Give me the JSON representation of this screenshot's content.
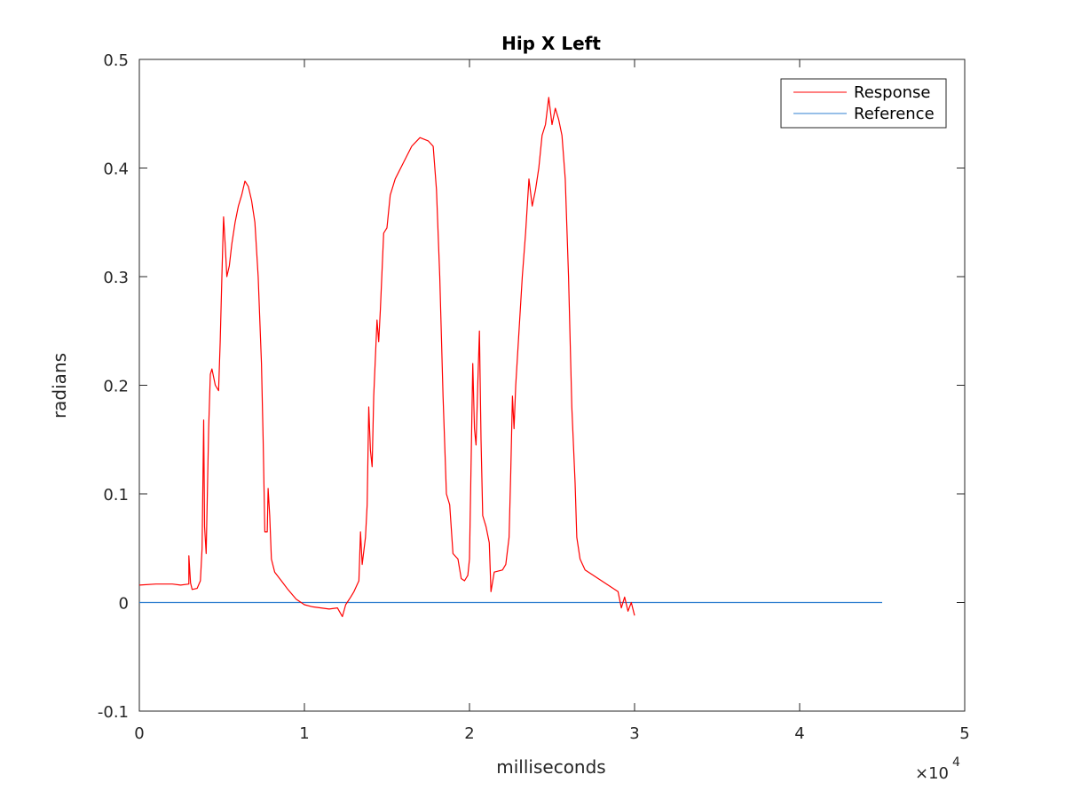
{
  "chart_data": {
    "type": "line",
    "title": "Hip X Left",
    "xlabel": "milliseconds",
    "ylabel": "radians",
    "xlim": [
      0,
      5
    ],
    "ylim": [
      -0.1,
      0.5
    ],
    "x_scale_exponent": "×10",
    "x_scale_power": "4",
    "xticks": [
      "0",
      "1",
      "2",
      "3",
      "4",
      "5"
    ],
    "yticks": [
      "-0.1",
      "0",
      "0.1",
      "0.2",
      "0.3",
      "0.4",
      "0.5"
    ],
    "grid": false,
    "legend_position": "top-right",
    "series": [
      {
        "name": "Response",
        "color": "#ff0000",
        "points": [
          [
            0,
            0.016
          ],
          [
            0.1,
            0.017
          ],
          [
            0.2,
            0.017
          ],
          [
            0.25,
            0.016
          ],
          [
            0.3,
            0.017
          ],
          [
            0.3,
            0.043
          ],
          [
            0.31,
            0.018
          ],
          [
            0.32,
            0.012
          ],
          [
            0.35,
            0.013
          ],
          [
            0.37,
            0.02
          ],
          [
            0.38,
            0.05
          ],
          [
            0.39,
            0.168
          ],
          [
            0.395,
            0.07
          ],
          [
            0.405,
            0.045
          ],
          [
            0.42,
            0.16
          ],
          [
            0.43,
            0.21
          ],
          [
            0.44,
            0.215
          ],
          [
            0.46,
            0.2
          ],
          [
            0.48,
            0.195
          ],
          [
            0.49,
            0.24
          ],
          [
            0.5,
            0.3
          ],
          [
            0.51,
            0.355
          ],
          [
            0.52,
            0.33
          ],
          [
            0.53,
            0.3
          ],
          [
            0.545,
            0.31
          ],
          [
            0.56,
            0.33
          ],
          [
            0.58,
            0.35
          ],
          [
            0.6,
            0.365
          ],
          [
            0.62,
            0.375
          ],
          [
            0.64,
            0.388
          ],
          [
            0.66,
            0.383
          ],
          [
            0.68,
            0.37
          ],
          [
            0.7,
            0.35
          ],
          [
            0.72,
            0.3
          ],
          [
            0.74,
            0.22
          ],
          [
            0.75,
            0.15
          ],
          [
            0.76,
            0.065
          ],
          [
            0.775,
            0.065
          ],
          [
            0.78,
            0.105
          ],
          [
            0.79,
            0.08
          ],
          [
            0.8,
            0.04
          ],
          [
            0.82,
            0.028
          ],
          [
            0.86,
            0.02
          ],
          [
            0.9,
            0.012
          ],
          [
            0.95,
            0.003
          ],
          [
            1.0,
            -0.002
          ],
          [
            1.05,
            -0.004
          ],
          [
            1.1,
            -0.005
          ],
          [
            1.15,
            -0.006
          ],
          [
            1.2,
            -0.005
          ],
          [
            1.23,
            -0.013
          ],
          [
            1.25,
            -0.002
          ],
          [
            1.28,
            0.005
          ],
          [
            1.3,
            0.01
          ],
          [
            1.33,
            0.02
          ],
          [
            1.34,
            0.065
          ],
          [
            1.35,
            0.035
          ],
          [
            1.37,
            0.06
          ],
          [
            1.38,
            0.09
          ],
          [
            1.39,
            0.18
          ],
          [
            1.4,
            0.14
          ],
          [
            1.41,
            0.125
          ],
          [
            1.42,
            0.19
          ],
          [
            1.44,
            0.26
          ],
          [
            1.45,
            0.24
          ],
          [
            1.46,
            0.27
          ],
          [
            1.48,
            0.34
          ],
          [
            1.5,
            0.345
          ],
          [
            1.52,
            0.375
          ],
          [
            1.55,
            0.39
          ],
          [
            1.6,
            0.405
          ],
          [
            1.65,
            0.42
          ],
          [
            1.7,
            0.428
          ],
          [
            1.75,
            0.425
          ],
          [
            1.78,
            0.42
          ],
          [
            1.8,
            0.38
          ],
          [
            1.82,
            0.3
          ],
          [
            1.84,
            0.19
          ],
          [
            1.86,
            0.1
          ],
          [
            1.88,
            0.09
          ],
          [
            1.9,
            0.045
          ],
          [
            1.93,
            0.04
          ],
          [
            1.95,
            0.022
          ],
          [
            1.97,
            0.02
          ],
          [
            1.99,
            0.025
          ],
          [
            2.0,
            0.04
          ],
          [
            2.02,
            0.22
          ],
          [
            2.03,
            0.16
          ],
          [
            2.04,
            0.145
          ],
          [
            2.05,
            0.2
          ],
          [
            2.06,
            0.25
          ],
          [
            2.07,
            0.15
          ],
          [
            2.08,
            0.08
          ],
          [
            2.1,
            0.07
          ],
          [
            2.12,
            0.055
          ],
          [
            2.13,
            0.01
          ],
          [
            2.15,
            0.028
          ],
          [
            2.2,
            0.03
          ],
          [
            2.22,
            0.035
          ],
          [
            2.24,
            0.06
          ],
          [
            2.25,
            0.12
          ],
          [
            2.26,
            0.19
          ],
          [
            2.27,
            0.16
          ],
          [
            2.28,
            0.2
          ],
          [
            2.3,
            0.25
          ],
          [
            2.32,
            0.3
          ],
          [
            2.34,
            0.34
          ],
          [
            2.36,
            0.39
          ],
          [
            2.38,
            0.365
          ],
          [
            2.4,
            0.38
          ],
          [
            2.42,
            0.4
          ],
          [
            2.44,
            0.43
          ],
          [
            2.46,
            0.44
          ],
          [
            2.48,
            0.465
          ],
          [
            2.5,
            0.44
          ],
          [
            2.52,
            0.455
          ],
          [
            2.54,
            0.445
          ],
          [
            2.56,
            0.43
          ],
          [
            2.58,
            0.39
          ],
          [
            2.6,
            0.3
          ],
          [
            2.62,
            0.18
          ],
          [
            2.64,
            0.11
          ],
          [
            2.65,
            0.06
          ],
          [
            2.67,
            0.04
          ],
          [
            2.7,
            0.03
          ],
          [
            2.75,
            0.025
          ],
          [
            2.8,
            0.02
          ],
          [
            2.85,
            0.015
          ],
          [
            2.9,
            0.01
          ],
          [
            2.92,
            -0.005
          ],
          [
            2.94,
            0.005
          ],
          [
            2.96,
            -0.008
          ],
          [
            2.98,
            0.0
          ],
          [
            3.0,
            -0.012
          ]
        ]
      },
      {
        "name": "Reference",
        "color": "#2f7fd0",
        "points": [
          [
            0,
            0
          ],
          [
            4.5,
            0
          ]
        ]
      }
    ]
  }
}
